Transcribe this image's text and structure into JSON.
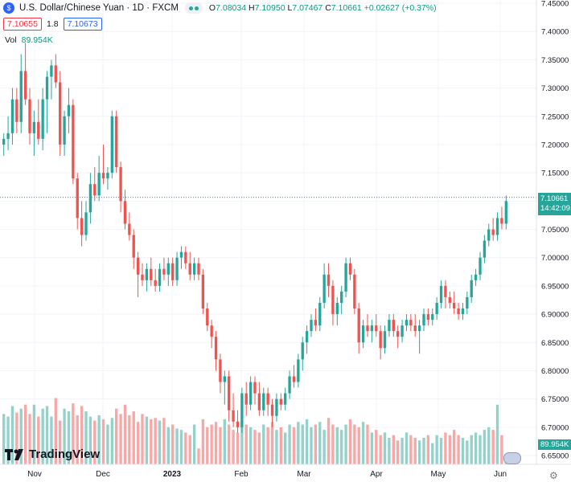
{
  "header": {
    "symbol_icon": "usd-cny-flag-icon",
    "title": "U.S. Dollar/Chinese Yuan · 1D · FXCM",
    "open_label": "O",
    "open": "7.08034",
    "high_label": "H",
    "high": "7.10950",
    "low_label": "L",
    "low": "7.07467",
    "close_label": "C",
    "close": "7.10661",
    "change": "+0.02627 (+0.37%)"
  },
  "quotes": {
    "sell": "7.10655",
    "spread": "1.8",
    "buy": "7.10673"
  },
  "volume_legend": {
    "label": "Vol",
    "value": "89.954K"
  },
  "price_tag": {
    "price": "7.10661",
    "countdown": "14:42:09"
  },
  "volume_tag": "89.954K",
  "branding": "TradingView",
  "colors": {
    "up": "#26a69a",
    "down": "#ef5350",
    "vol_up": "#94d1ca",
    "vol_down": "#f7a7a5",
    "grid": "#f0f3fa",
    "last_line": "#26a69a"
  },
  "icons": {
    "settings": "gear-icon",
    "events": "us-flag-events-icon"
  },
  "chart_data": {
    "type": "candlestick",
    "y_ticks": [
      "7.45000",
      "7.40000",
      "7.35000",
      "7.30000",
      "7.25000",
      "7.20000",
      "7.15000",
      "7.10000",
      "7.05000",
      "7.00000",
      "6.95000",
      "6.90000",
      "6.85000",
      "6.80000",
      "6.75000",
      "6.70000",
      "6.65000"
    ],
    "x_ticks": [
      "Nov",
      "Dec",
      "2023",
      "Feb",
      "Mar",
      "Apr",
      "May",
      "Jun"
    ],
    "ylim": [
      6.64,
      7.455
    ],
    "last_price": 7.10661,
    "ohlc": [
      [
        7.2,
        7.22,
        7.18,
        7.21
      ],
      [
        7.21,
        7.25,
        7.19,
        7.22
      ],
      [
        7.22,
        7.3,
        7.2,
        7.28
      ],
      [
        7.28,
        7.3,
        7.22,
        7.24
      ],
      [
        7.24,
        7.36,
        7.22,
        7.33
      ],
      [
        7.33,
        7.38,
        7.27,
        7.28
      ],
      [
        7.28,
        7.3,
        7.2,
        7.22
      ],
      [
        7.22,
        7.26,
        7.18,
        7.24
      ],
      [
        7.24,
        7.28,
        7.2,
        7.21
      ],
      [
        7.21,
        7.3,
        7.19,
        7.28
      ],
      [
        7.28,
        7.33,
        7.22,
        7.32
      ],
      [
        7.32,
        7.35,
        7.28,
        7.34
      ],
      [
        7.34,
        7.36,
        7.3,
        7.31
      ],
      [
        7.31,
        7.33,
        7.18,
        7.2
      ],
      [
        7.2,
        7.26,
        7.18,
        7.25
      ],
      [
        7.25,
        7.3,
        7.22,
        7.27
      ],
      [
        7.27,
        7.28,
        7.13,
        7.14
      ],
      [
        7.14,
        7.15,
        7.05,
        7.07
      ],
      [
        7.07,
        7.1,
        7.02,
        7.04
      ],
      [
        7.04,
        7.1,
        7.03,
        7.08
      ],
      [
        7.08,
        7.15,
        7.06,
        7.13
      ],
      [
        7.13,
        7.16,
        7.1,
        7.11
      ],
      [
        7.11,
        7.18,
        7.1,
        7.15
      ],
      [
        7.15,
        7.2,
        7.13,
        7.14
      ],
      [
        7.14,
        7.16,
        7.12,
        7.15
      ],
      [
        7.15,
        7.26,
        7.14,
        7.25
      ],
      [
        7.25,
        7.26,
        7.15,
        7.16
      ],
      [
        7.16,
        7.17,
        7.08,
        7.1
      ],
      [
        7.1,
        7.12,
        7.05,
        7.06
      ],
      [
        7.06,
        7.08,
        7.03,
        7.04
      ],
      [
        7.04,
        7.05,
        6.98,
        7.0
      ],
      [
        7.0,
        7.01,
        6.93,
        6.97
      ],
      [
        6.97,
        6.99,
        6.95,
        6.96
      ],
      [
        6.96,
        6.99,
        6.94,
        6.98
      ],
      [
        6.98,
        7.0,
        6.95,
        6.96
      ],
      [
        6.96,
        6.98,
        6.94,
        6.95
      ],
      [
        6.95,
        6.99,
        6.94,
        6.98
      ],
      [
        6.98,
        7.0,
        6.96,
        6.97
      ],
      [
        6.97,
        7.0,
        6.95,
        6.99
      ],
      [
        6.99,
        7.0,
        6.95,
        6.96
      ],
      [
        6.96,
        7.01,
        6.95,
        7.0
      ],
      [
        7.0,
        7.02,
        6.98,
        7.01
      ],
      [
        7.01,
        7.02,
        6.98,
        6.99
      ],
      [
        6.99,
        7.01,
        6.96,
        6.97
      ],
      [
        6.97,
        7.0,
        6.96,
        6.99
      ],
      [
        6.99,
        7.0,
        6.96,
        6.97
      ],
      [
        6.97,
        6.98,
        6.9,
        6.91
      ],
      [
        6.91,
        6.92,
        6.87,
        6.88
      ],
      [
        6.88,
        6.89,
        6.84,
        6.86
      ],
      [
        6.86,
        6.87,
        6.8,
        6.82
      ],
      [
        6.82,
        6.83,
        6.76,
        6.78
      ],
      [
        6.78,
        6.8,
        6.74,
        6.79
      ],
      [
        6.79,
        6.8,
        6.71,
        6.73
      ],
      [
        6.73,
        6.76,
        6.7,
        6.71
      ],
      [
        6.71,
        6.73,
        6.69,
        6.7
      ],
      [
        6.7,
        6.77,
        6.69,
        6.76
      ],
      [
        6.76,
        6.78,
        6.72,
        6.74
      ],
      [
        6.74,
        6.79,
        6.73,
        6.78
      ],
      [
        6.78,
        6.79,
        6.74,
        6.76
      ],
      [
        6.76,
        6.78,
        6.72,
        6.73
      ],
      [
        6.73,
        6.77,
        6.72,
        6.76
      ],
      [
        6.76,
        6.77,
        6.72,
        6.74
      ],
      [
        6.74,
        6.75,
        6.7,
        6.72
      ],
      [
        6.72,
        6.76,
        6.71,
        6.75
      ],
      [
        6.75,
        6.76,
        6.73,
        6.74
      ],
      [
        6.74,
        6.77,
        6.73,
        6.76
      ],
      [
        6.76,
        6.8,
        6.75,
        6.79
      ],
      [
        6.79,
        6.81,
        6.77,
        6.78
      ],
      [
        6.78,
        6.83,
        6.77,
        6.82
      ],
      [
        6.82,
        6.86,
        6.8,
        6.85
      ],
      [
        6.85,
        6.88,
        6.83,
        6.87
      ],
      [
        6.87,
        6.9,
        6.86,
        6.89
      ],
      [
        6.89,
        6.91,
        6.87,
        6.88
      ],
      [
        6.88,
        6.93,
        6.87,
        6.92
      ],
      [
        6.92,
        6.99,
        6.91,
        6.97
      ],
      [
        6.97,
        6.99,
        6.93,
        6.95
      ],
      [
        6.95,
        6.96,
        6.88,
        6.9
      ],
      [
        6.9,
        6.93,
        6.88,
        6.92
      ],
      [
        6.92,
        6.95,
        6.9,
        6.94
      ],
      [
        6.94,
        7.0,
        6.93,
        6.99
      ],
      [
        6.99,
        7.0,
        6.96,
        6.97
      ],
      [
        6.97,
        6.98,
        6.9,
        6.91
      ],
      [
        6.91,
        6.92,
        6.83,
        6.85
      ],
      [
        6.85,
        6.89,
        6.84,
        6.88
      ],
      [
        6.88,
        6.9,
        6.86,
        6.87
      ],
      [
        6.87,
        6.89,
        6.85,
        6.88
      ],
      [
        6.88,
        6.9,
        6.86,
        6.87
      ],
      [
        6.87,
        6.88,
        6.82,
        6.84
      ],
      [
        6.84,
        6.88,
        6.83,
        6.87
      ],
      [
        6.87,
        6.9,
        6.86,
        6.89
      ],
      [
        6.89,
        6.9,
        6.86,
        6.87
      ],
      [
        6.87,
        6.88,
        6.84,
        6.86
      ],
      [
        6.86,
        6.89,
        6.85,
        6.88
      ],
      [
        6.88,
        6.9,
        6.87,
        6.89
      ],
      [
        6.89,
        6.9,
        6.87,
        6.88
      ],
      [
        6.88,
        6.9,
        6.86,
        6.87
      ],
      [
        6.87,
        6.89,
        6.83,
        6.88
      ],
      [
        6.88,
        6.91,
        6.87,
        6.9
      ],
      [
        6.9,
        6.91,
        6.88,
        6.89
      ],
      [
        6.89,
        6.91,
        6.88,
        6.9
      ],
      [
        6.9,
        6.93,
        6.89,
        6.92
      ],
      [
        6.92,
        6.96,
        6.91,
        6.95
      ],
      [
        6.95,
        6.96,
        6.91,
        6.93
      ],
      [
        6.93,
        6.94,
        6.91,
        6.92
      ],
      [
        6.92,
        6.94,
        6.9,
        6.91
      ],
      [
        6.91,
        6.92,
        6.89,
        6.9
      ],
      [
        6.9,
        6.92,
        6.89,
        6.91
      ],
      [
        6.91,
        6.94,
        6.9,
        6.93
      ],
      [
        6.93,
        6.97,
        6.92,
        6.96
      ],
      [
        6.96,
        6.98,
        6.95,
        6.97
      ],
      [
        6.97,
        7.01,
        6.96,
        7.0
      ],
      [
        7.0,
        7.04,
        6.99,
        7.03
      ],
      [
        7.03,
        7.06,
        7.02,
        7.05
      ],
      [
        7.05,
        7.07,
        7.03,
        7.04
      ],
      [
        7.04,
        7.08,
        7.03,
        7.07
      ],
      [
        7.07,
        7.09,
        7.05,
        7.06
      ],
      [
        7.06,
        7.11,
        7.05,
        7.1
      ]
    ],
    "volume": [
      0.38,
      0.36,
      0.44,
      0.39,
      0.42,
      0.45,
      0.38,
      0.45,
      0.36,
      0.42,
      0.44,
      0.36,
      0.5,
      0.33,
      0.42,
      0.4,
      0.46,
      0.37,
      0.44,
      0.4,
      0.36,
      0.33,
      0.37,
      0.34,
      0.3,
      0.35,
      0.42,
      0.38,
      0.45,
      0.37,
      0.4,
      0.32,
      0.38,
      0.36,
      0.34,
      0.35,
      0.33,
      0.35,
      0.28,
      0.3,
      0.27,
      0.26,
      0.24,
      0.22,
      0.3,
      0.12,
      0.34,
      0.28,
      0.3,
      0.32,
      0.28,
      0.34,
      0.3,
      0.26,
      0.24,
      0.32,
      0.3,
      0.28,
      0.26,
      0.24,
      0.3,
      0.28,
      0.32,
      0.26,
      0.28,
      0.24,
      0.3,
      0.28,
      0.32,
      0.3,
      0.34,
      0.28,
      0.3,
      0.32,
      0.26,
      0.35,
      0.3,
      0.28,
      0.26,
      0.3,
      0.34,
      0.3,
      0.28,
      0.32,
      0.3,
      0.24,
      0.26,
      0.22,
      0.24,
      0.2,
      0.22,
      0.18,
      0.2,
      0.24,
      0.22,
      0.2,
      0.18,
      0.2,
      0.22,
      0.16,
      0.22,
      0.2,
      0.24,
      0.22,
      0.26,
      0.22,
      0.2,
      0.18,
      0.22,
      0.24,
      0.22,
      0.26,
      0.28,
      0.26,
      0.45,
      0.22,
      0.08
    ]
  }
}
